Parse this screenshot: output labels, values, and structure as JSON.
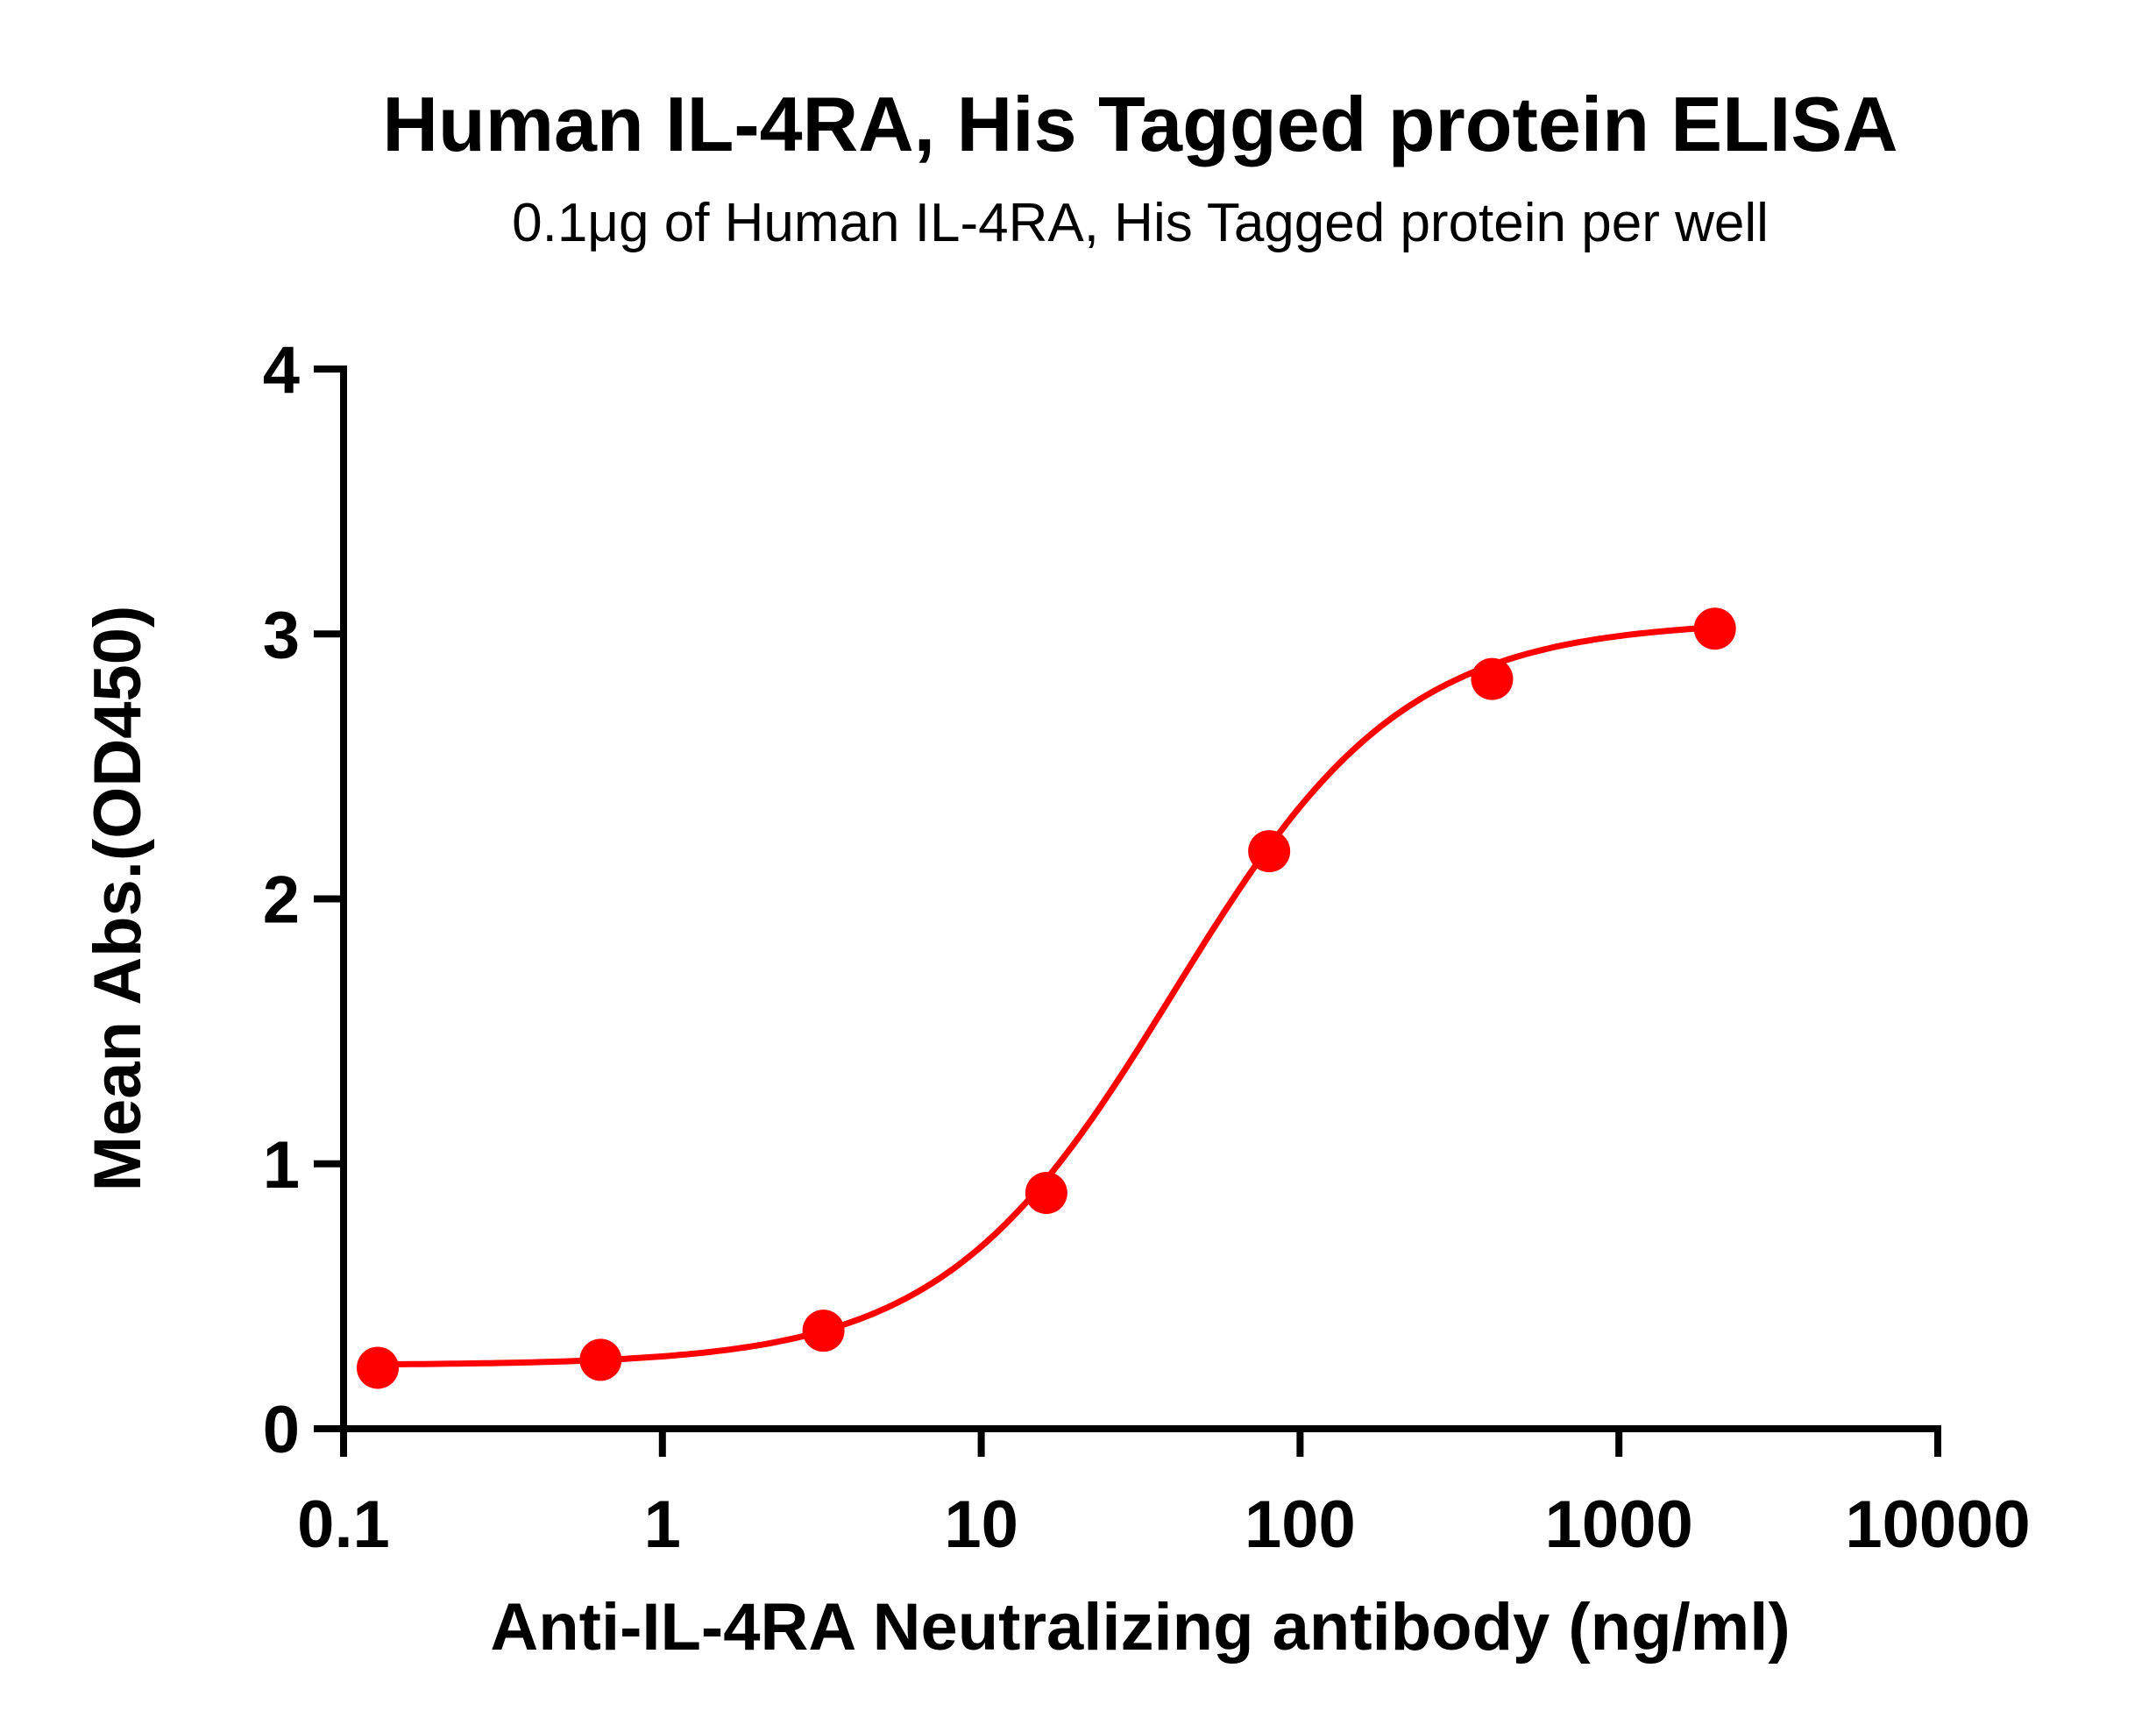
{
  "chart_data": {
    "type": "scatter",
    "title": "Human IL-4RA, His Tagged protein ELISA",
    "subtitle": "0.1μg of Human IL-4RA, His Tagged protein per well",
    "xlabel": "Anti-IL-4RA Neutralizing antibody (ng/ml)",
    "ylabel": "Mean Abs.(OD450)",
    "xscale": "log",
    "xlim": [
      0.1,
      10000
    ],
    "ylim": [
      0,
      4
    ],
    "xticks": [
      0.1,
      1,
      10,
      100,
      1000,
      10000
    ],
    "xtick_labels": [
      "0.1",
      "1",
      "10",
      "100",
      "1000",
      "10000"
    ],
    "yticks": [
      0,
      1,
      2,
      3,
      4
    ],
    "ytick_labels": [
      "0",
      "1",
      "2",
      "3",
      "4"
    ],
    "grid": false,
    "color": "#ff0000",
    "series": [
      {
        "name": "ELISA",
        "x": [
          0.128,
          0.64,
          3.2,
          16,
          80,
          400,
          2000
        ],
        "y": [
          0.23,
          0.26,
          0.37,
          0.89,
          2.18,
          2.83,
          3.02
        ]
      }
    ],
    "fit": {
      "model": "4PL",
      "bottom": 0.24,
      "top": 3.05,
      "ec50": 40,
      "hill": 1.2
    }
  }
}
